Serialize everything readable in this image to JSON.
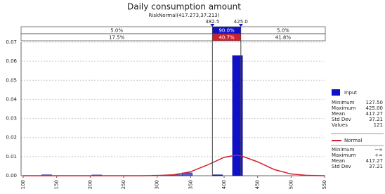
{
  "chart_data": {
    "type": "histogram",
    "title": "Daily consumption amount",
    "subtitle": "RiskNormal(417.273,37.213)",
    "xlim": [
      100,
      550
    ],
    "xticks": [
      100,
      150,
      200,
      250,
      300,
      350,
      400,
      450,
      500,
      550
    ],
    "ylim": [
      0,
      0.07
    ],
    "yticks": [
      {
        "value": 0,
        "label": "0.00"
      },
      0.01,
      0.02,
      0.03,
      0.04,
      0.05,
      0.06,
      0.07
    ],
    "grid": true,
    "color": "#1010c8",
    "bins": [
      127.5,
      142.5,
      157.5,
      172.5,
      187.5,
      202.5,
      217.5,
      232.5,
      247.5,
      262.5,
      277.5,
      292.5,
      307.5,
      322.5,
      337.5,
      352.5,
      367.5,
      382.5,
      397.5,
      412.5,
      427.5
    ],
    "values": [
      0.0005,
      0,
      0,
      0,
      0,
      0.0004,
      0,
      0,
      0,
      0,
      0,
      0.0003,
      0.0003,
      0.0005,
      0.0015,
      0,
      0,
      0.0005,
      0,
      0.063
    ],
    "curve": {
      "name": "Normal",
      "color": "#d02030",
      "x": [
        100,
        250,
        275,
        300,
        325,
        350,
        375,
        400,
        417.27,
        425,
        450,
        475,
        500,
        525,
        550
      ],
      "values": [
        0,
        4e-07,
        7.2e-06,
        7.46e-05,
        0.000495,
        0.00209,
        0.00562,
        0.00963,
        0.01072,
        0.01049,
        0.00728,
        0.00322,
        0.000906,
        0.000162,
        1.86e-05
      ]
    },
    "delimiters": [
      {
        "value": 382.5,
        "label": "382.5"
      },
      {
        "value": 425,
        "label": "425.0"
      }
    ],
    "bands": [
      [
        "5.0%",
        "90.0%",
        "5.0%"
      ],
      [
        "17.5%",
        "40.7%",
        "41.8%"
      ]
    ],
    "legend": {
      "input": {
        "name": "Input",
        "stats": [
          [
            "Minimum",
            "127.50"
          ],
          [
            "Maximum",
            "425.00"
          ],
          [
            "Mean",
            "417.27"
          ],
          [
            "Std Dev",
            "37.21"
          ],
          [
            "Values",
            "121"
          ]
        ]
      },
      "fit": {
        "name": "Normal",
        "stats": [
          [
            "Minimum",
            "−∞"
          ],
          [
            "Maximum",
            "+∞"
          ],
          [
            "Mean",
            "417.27"
          ],
          [
            "Std Dev",
            "37.21"
          ]
        ]
      }
    }
  }
}
